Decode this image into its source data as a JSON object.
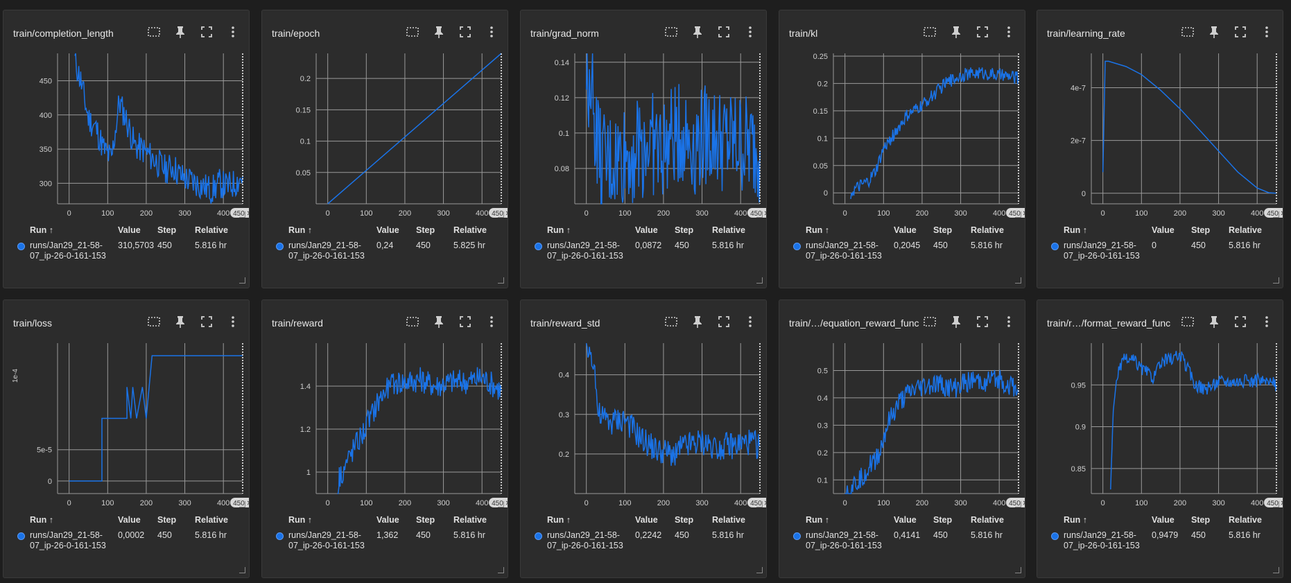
{
  "table_headers": {
    "run": "Run ↑",
    "value": "Value",
    "step": "Step",
    "relative": "Relative"
  },
  "run_name": "runs/Jan29_21-58-07_ip-26-0-161-153",
  "step_badge": "450 ✕",
  "accent_color": "#1a73e8",
  "cards": [
    {
      "title": "train/completion_length",
      "value": "310,5703",
      "step": "450",
      "relative": "5.816 hr",
      "chart_data": {
        "type": "line",
        "x_ticks": [
          "0",
          "100",
          "200",
          "300",
          "400"
        ],
        "y_ticks": [
          "300",
          "350",
          "400",
          "450"
        ],
        "xlim": [
          -30,
          450
        ],
        "ylim": [
          270,
          490
        ],
        "series": [
          {
            "values": [
              [
                15,
                480
              ],
              [
                30,
                450
              ],
              [
                50,
                395
              ],
              [
                70,
                380
              ],
              [
                90,
                350
              ],
              [
                110,
                335
              ],
              [
                130,
                420
              ],
              [
                150,
                390
              ],
              [
                170,
                355
              ],
              [
                190,
                350
              ],
              [
                210,
                340
              ],
              [
                230,
                330
              ],
              [
                250,
                320
              ],
              [
                270,
                325
              ],
              [
                290,
                310
              ],
              [
                310,
                305
              ],
              [
                330,
                300
              ],
              [
                350,
                295
              ],
              [
                370,
                290
              ],
              [
                390,
                300
              ],
              [
                410,
                295
              ],
              [
                430,
                300
              ],
              [
                450,
                310
              ]
            ],
            "noise": 22
          }
        ]
      }
    },
    {
      "title": "train/epoch",
      "value": "0,24",
      "step": "450",
      "relative": "5.825 hr",
      "chart_data": {
        "type": "line",
        "x_ticks": [
          "0",
          "100",
          "200",
          "300",
          "400"
        ],
        "y_ticks": [
          "0.05",
          "0.1",
          "0.15",
          "0.2"
        ],
        "xlim": [
          -30,
          450
        ],
        "ylim": [
          0,
          0.24
        ],
        "series": [
          {
            "values": [
              [
                0,
                0
              ],
              [
                450,
                0.24
              ]
            ],
            "noise": 0
          }
        ]
      }
    },
    {
      "title": "train/grad_norm",
      "value": "0,0872",
      "step": "450",
      "relative": "5.816 hr",
      "chart_data": {
        "type": "line",
        "x_ticks": [
          "0",
          "100",
          "200",
          "300",
          "400"
        ],
        "y_ticks": [
          "0.08",
          "0.1",
          "0.12",
          "0.14"
        ],
        "xlim": [
          -30,
          450
        ],
        "ylim": [
          0.06,
          0.145
        ],
        "series": [
          {
            "values": [
              [
                0,
                0.12
              ],
              [
                10,
                0.14
              ],
              [
                20,
                0.11
              ],
              [
                40,
                0.08
              ],
              [
                80,
                0.085
              ],
              [
                120,
                0.09
              ],
              [
                160,
                0.095
              ],
              [
                200,
                0.09
              ],
              [
                240,
                0.1
              ],
              [
                280,
                0.095
              ],
              [
                320,
                0.1
              ],
              [
                360,
                0.095
              ],
              [
                400,
                0.095
              ],
              [
                450,
                0.09
              ]
            ],
            "noise": 0.03
          }
        ]
      }
    },
    {
      "title": "train/kl",
      "value": "0,2045",
      "step": "450",
      "relative": "5.816 hr",
      "chart_data": {
        "type": "line",
        "x_ticks": [
          "0",
          "100",
          "200",
          "300",
          "400"
        ],
        "y_ticks": [
          "0",
          "0.05",
          "0.1",
          "0.15",
          "0.2",
          "0.25"
        ],
        "xlim": [
          -30,
          450
        ],
        "ylim": [
          -0.02,
          0.255
        ],
        "series": [
          {
            "values": [
              [
                15,
                0
              ],
              [
                40,
                0.012
              ],
              [
                60,
                0.02
              ],
              [
                80,
                0.04
              ],
              [
                100,
                0.08
              ],
              [
                130,
                0.11
              ],
              [
                160,
                0.14
              ],
              [
                200,
                0.16
              ],
              [
                230,
                0.18
              ],
              [
                260,
                0.2
              ],
              [
                300,
                0.215
              ],
              [
                350,
                0.22
              ],
              [
                400,
                0.215
              ],
              [
                450,
                0.21
              ]
            ],
            "noise": 0.012
          }
        ]
      }
    },
    {
      "title": "train/learning_rate",
      "value": "0",
      "step": "450",
      "relative": "5.816 hr",
      "chart_data": {
        "type": "line",
        "x_ticks": [
          "0",
          "100",
          "200",
          "300",
          "400"
        ],
        "y_ticks": [
          "0",
          "2e-7",
          "4e-7"
        ],
        "xlim": [
          -30,
          450
        ],
        "ylim": [
          -4e-08,
          5.3e-07
        ],
        "series": [
          {
            "values": [
              [
                0,
                8e-08
              ],
              [
                6,
                5e-07
              ],
              [
                15,
                5e-07
              ],
              [
                60,
                4.8e-07
              ],
              [
                100,
                4.5e-07
              ],
              [
                150,
                3.9e-07
              ],
              [
                200,
                3.2e-07
              ],
              [
                250,
                2.4e-07
              ],
              [
                300,
                1.6e-07
              ],
              [
                350,
                8e-08
              ],
              [
                400,
                2e-08
              ],
              [
                430,
                2e-09
              ],
              [
                450,
                0
              ]
            ],
            "noise": 0
          }
        ]
      }
    },
    {
      "title": "train/loss",
      "value": "0,0002",
      "step": "450",
      "relative": "5.816 hr",
      "chart_data": {
        "type": "step",
        "x_ticks": [
          "0",
          "100",
          "200",
          "300",
          "400"
        ],
        "y_ticks": [
          "0",
          "5e-5"
        ],
        "ylim_labels": [
          "0",
          "5e-5"
        ],
        "y_axis_label": "1e-4",
        "xlim": [
          -30,
          450
        ],
        "ylim": [
          -2e-05,
          0.00022
        ],
        "series": [
          {
            "values": [
              [
                0,
                0
              ],
              [
                85,
                0
              ],
              [
                85,
                0.0001
              ],
              [
                150,
                0.0001
              ],
              [
                150,
                0.00015
              ],
              [
                160,
                0.0001
              ],
              [
                165,
                0.00015
              ],
              [
                175,
                0.0001
              ],
              [
                190,
                0.00015
              ],
              [
                200,
                0.0001
              ],
              [
                215,
                0.0002
              ],
              [
                450,
                0.0002
              ]
            ],
            "noise": 0
          }
        ]
      }
    },
    {
      "title": "train/reward",
      "value": "1,362",
      "step": "450",
      "relative": "5.816 hr",
      "chart_data": {
        "type": "line",
        "x_ticks": [
          "0",
          "100",
          "200",
          "300",
          "400"
        ],
        "y_ticks": [
          "1",
          "1.2",
          "1.4"
        ],
        "xlim": [
          -30,
          450
        ],
        "ylim": [
          0.9,
          1.6
        ],
        "series": [
          {
            "values": [
              [
                25,
                0.9
              ],
              [
                30,
                0.98
              ],
              [
                50,
                1.05
              ],
              [
                70,
                1.12
              ],
              [
                90,
                1.18
              ],
              [
                110,
                1.25
              ],
              [
                130,
                1.33
              ],
              [
                150,
                1.38
              ],
              [
                180,
                1.42
              ],
              [
                200,
                1.42
              ],
              [
                240,
                1.43
              ],
              [
                280,
                1.4
              ],
              [
                320,
                1.42
              ],
              [
                360,
                1.42
              ],
              [
                400,
                1.44
              ],
              [
                450,
                1.38
              ]
            ],
            "noise": 0.06
          }
        ]
      }
    },
    {
      "title": "train/reward_std",
      "value": "0,2242",
      "step": "450",
      "relative": "5.816 hr",
      "chart_data": {
        "type": "line",
        "x_ticks": [
          "0",
          "100",
          "200",
          "300",
          "400"
        ],
        "y_ticks": [
          "0.2",
          "0.3",
          "0.4"
        ],
        "xlim": [
          -30,
          450
        ],
        "ylim": [
          0.1,
          0.48
        ],
        "series": [
          {
            "values": [
              [
                0,
                0.47
              ],
              [
                20,
                0.44
              ],
              [
                30,
                0.3
              ],
              [
                60,
                0.28
              ],
              [
                100,
                0.29
              ],
              [
                140,
                0.24
              ],
              [
                180,
                0.21
              ],
              [
                220,
                0.2
              ],
              [
                260,
                0.22
              ],
              [
                300,
                0.23
              ],
              [
                340,
                0.22
              ],
              [
                380,
                0.22
              ],
              [
                420,
                0.23
              ],
              [
                450,
                0.22
              ]
            ],
            "noise": 0.035
          }
        ]
      }
    },
    {
      "title": "train/rewards/equation_reward_func",
      "value": "0,4141",
      "step": "450",
      "relative": "5.816 hr",
      "chart_data": {
        "type": "line",
        "x_ticks": [
          "0",
          "100",
          "200",
          "300",
          "400"
        ],
        "y_ticks": [
          "0.1",
          "0.2",
          "0.3",
          "0.4",
          "0.5"
        ],
        "xlim": [
          -30,
          450
        ],
        "ylim": [
          0.05,
          0.6
        ],
        "series": [
          {
            "values": [
              [
                0,
                0.05
              ],
              [
                30,
                0.09
              ],
              [
                60,
                0.14
              ],
              [
                90,
                0.2
              ],
              [
                110,
                0.3
              ],
              [
                140,
                0.38
              ],
              [
                170,
                0.42
              ],
              [
                200,
                0.44
              ],
              [
                240,
                0.45
              ],
              [
                280,
                0.43
              ],
              [
                320,
                0.46
              ],
              [
                360,
                0.46
              ],
              [
                400,
                0.47
              ],
              [
                450,
                0.42
              ]
            ],
            "noise": 0.04
          }
        ]
      }
    },
    {
      "title": "train/rewards/format_reward_func",
      "value": "0,9479",
      "step": "450",
      "relative": "5.816 hr",
      "chart_data": {
        "type": "line",
        "x_ticks": [
          "0",
          "100",
          "200",
          "300",
          "400"
        ],
        "y_ticks": [
          "0.85",
          "0.9",
          "0.95"
        ],
        "xlim": [
          -30,
          450
        ],
        "ylim": [
          0.82,
          1.0
        ],
        "series": [
          {
            "values": [
              [
                20,
                0.82
              ],
              [
                25,
                0.9
              ],
              [
                35,
                0.96
              ],
              [
                55,
                0.98
              ],
              [
                80,
                0.98
              ],
              [
                100,
                0.97
              ],
              [
                130,
                0.96
              ],
              [
                160,
                0.98
              ],
              [
                200,
                0.985
              ],
              [
                220,
                0.97
              ],
              [
                240,
                0.95
              ],
              [
                270,
                0.945
              ],
              [
                300,
                0.955
              ],
              [
                340,
                0.955
              ],
              [
                380,
                0.955
              ],
              [
                420,
                0.955
              ],
              [
                450,
                0.95
              ]
            ],
            "noise": 0.008
          }
        ]
      }
    }
  ]
}
